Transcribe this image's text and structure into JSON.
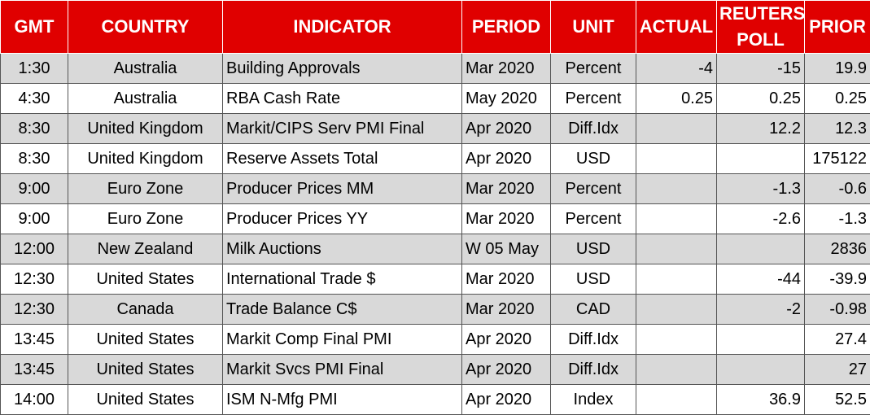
{
  "table": {
    "headers": [
      "GMT",
      "COUNTRY",
      "INDICATOR",
      "PERIOD",
      "UNIT",
      "ACTUAL",
      "REUTERS POLL",
      "PRIOR"
    ],
    "rows": [
      [
        "1:30",
        "Australia",
        "Building Approvals",
        "Mar 2020",
        "Percent",
        "-4",
        "-15",
        "19.9"
      ],
      [
        "4:30",
        "Australia",
        "RBA Cash Rate",
        "May 2020",
        "Percent",
        "0.25",
        "0.25",
        "0.25"
      ],
      [
        "8:30",
        "United Kingdom",
        "Markit/CIPS Serv PMI Final",
        "Apr 2020",
        "Diff.Idx",
        null,
        "12.2",
        "12.3"
      ],
      [
        "8:30",
        "United Kingdom",
        "Reserve Assets Total",
        "Apr 2020",
        "USD",
        null,
        null,
        "175122"
      ],
      [
        "9:00",
        "Euro Zone",
        "Producer Prices MM",
        "Mar 2020",
        "Percent",
        null,
        "-1.3",
        "-0.6"
      ],
      [
        "9:00",
        "Euro Zone",
        "Producer Prices YY",
        "Mar 2020",
        "Percent",
        null,
        "-2.6",
        "-1.3"
      ],
      [
        "12:00",
        "New Zealand",
        "Milk Auctions",
        "W 05 May",
        "USD",
        null,
        null,
        "2836"
      ],
      [
        "12:30",
        "United States",
        "International Trade $",
        "Mar 2020",
        "USD",
        null,
        "-44",
        "-39.9"
      ],
      [
        "12:30",
        "Canada",
        "Trade Balance C$",
        "Mar 2020",
        "CAD",
        null,
        "-2",
        "-0.98"
      ],
      [
        "13:45",
        "United States",
        "Markit Comp Final PMI",
        "Apr 2020",
        "Diff.Idx",
        null,
        null,
        "27.4"
      ],
      [
        "13:45",
        "United States",
        "Markit Svcs PMI Final",
        "Apr 2020",
        "Diff.Idx",
        null,
        null,
        "27"
      ],
      [
        "14:00",
        "United States",
        "ISM N-Mfg PMI",
        "Apr 2020",
        "Index",
        null,
        "36.9",
        "52.5"
      ]
    ]
  }
}
